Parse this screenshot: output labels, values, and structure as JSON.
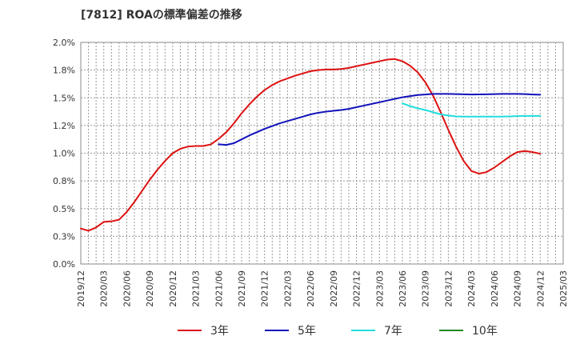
{
  "chart_data": {
    "type": "line",
    "title": "[7812]  ROAの標準偏差の推移",
    "xlabel": "",
    "ylabel": "",
    "ylim": [
      0,
      2.0
    ],
    "y_ticks": [
      "0.0%",
      "0.3%",
      "0.5%",
      "0.8%",
      "1.0%",
      "1.2%",
      "1.5%",
      "1.8%",
      "2.0%"
    ],
    "x_ticks": [
      "2019/12",
      "2020/03",
      "2020/06",
      "2020/09",
      "2020/12",
      "2021/03",
      "2021/06",
      "2021/09",
      "2021/12",
      "2022/03",
      "2022/06",
      "2022/09",
      "2022/12",
      "2023/03",
      "2023/06",
      "2023/09",
      "2023/12",
      "2024/03",
      "2024/06",
      "2024/09",
      "2024/12",
      "2025/03"
    ],
    "grid": true,
    "legend_position": "bottom",
    "series": [
      {
        "name": "3年",
        "color": "#dd1111",
        "points": [
          [
            "2019/12",
            0.32
          ],
          [
            "2020/01",
            0.3
          ],
          [
            "2020/02",
            0.33
          ],
          [
            "2020/03",
            0.38
          ],
          [
            "2020/04",
            0.385
          ],
          [
            "2020/05",
            0.4
          ],
          [
            "2020/06",
            0.47
          ],
          [
            "2020/07",
            0.56
          ],
          [
            "2020/08",
            0.66
          ],
          [
            "2020/09",
            0.76
          ],
          [
            "2020/10",
            0.85
          ],
          [
            "2020/11",
            0.93
          ],
          [
            "2020/12",
            1.0
          ],
          [
            "2021/01",
            1.04
          ],
          [
            "2021/02",
            1.06
          ],
          [
            "2021/03",
            1.065
          ],
          [
            "2021/04",
            1.065
          ],
          [
            "2021/05",
            1.08
          ],
          [
            "2021/06",
            1.13
          ],
          [
            "2021/07",
            1.19
          ],
          [
            "2021/08",
            1.27
          ],
          [
            "2021/09",
            1.36
          ],
          [
            "2021/10",
            1.44
          ],
          [
            "2021/11",
            1.51
          ],
          [
            "2021/12",
            1.57
          ],
          [
            "2022/01",
            1.615
          ],
          [
            "2022/02",
            1.65
          ],
          [
            "2022/03",
            1.675
          ],
          [
            "2022/04",
            1.7
          ],
          [
            "2022/05",
            1.72
          ],
          [
            "2022/06",
            1.74
          ],
          [
            "2022/07",
            1.75
          ],
          [
            "2022/08",
            1.755
          ],
          [
            "2022/09",
            1.755
          ],
          [
            "2022/10",
            1.76
          ],
          [
            "2022/11",
            1.77
          ],
          [
            "2022/12",
            1.785
          ],
          [
            "2023/01",
            1.8
          ],
          [
            "2023/02",
            1.815
          ],
          [
            "2023/03",
            1.83
          ],
          [
            "2023/04",
            1.845
          ],
          [
            "2023/05",
            1.85
          ],
          [
            "2023/06",
            1.83
          ],
          [
            "2023/07",
            1.79
          ],
          [
            "2023/08",
            1.73
          ],
          [
            "2023/09",
            1.64
          ],
          [
            "2023/10",
            1.52
          ],
          [
            "2023/11",
            1.37
          ],
          [
            "2023/12",
            1.21
          ],
          [
            "2024/01",
            1.06
          ],
          [
            "2024/02",
            0.93
          ],
          [
            "2024/03",
            0.84
          ],
          [
            "2024/04",
            0.815
          ],
          [
            "2024/05",
            0.83
          ],
          [
            "2024/06",
            0.87
          ],
          [
            "2024/07",
            0.92
          ],
          [
            "2024/08",
            0.97
          ],
          [
            "2024/09",
            1.01
          ],
          [
            "2024/10",
            1.02
          ],
          [
            "2024/11",
            1.01
          ],
          [
            "2024/12",
            0.995
          ]
        ]
      },
      {
        "name": "5年",
        "color": "#1111bb",
        "points": [
          [
            "2021/06",
            1.08
          ],
          [
            "2021/07",
            1.075
          ],
          [
            "2021/08",
            1.09
          ],
          [
            "2021/09",
            1.125
          ],
          [
            "2021/10",
            1.16
          ],
          [
            "2021/11",
            1.19
          ],
          [
            "2021/12",
            1.22
          ],
          [
            "2022/01",
            1.245
          ],
          [
            "2022/02",
            1.27
          ],
          [
            "2022/03",
            1.29
          ],
          [
            "2022/04",
            1.31
          ],
          [
            "2022/05",
            1.33
          ],
          [
            "2022/06",
            1.35
          ],
          [
            "2022/07",
            1.365
          ],
          [
            "2022/08",
            1.375
          ],
          [
            "2022/09",
            1.383
          ],
          [
            "2022/10",
            1.39
          ],
          [
            "2022/11",
            1.4
          ],
          [
            "2022/12",
            1.415
          ],
          [
            "2023/01",
            1.43
          ],
          [
            "2023/02",
            1.445
          ],
          [
            "2023/03",
            1.46
          ],
          [
            "2023/04",
            1.475
          ],
          [
            "2023/05",
            1.49
          ],
          [
            "2023/06",
            1.505
          ],
          [
            "2023/07",
            1.515
          ],
          [
            "2023/08",
            1.525
          ],
          [
            "2023/09",
            1.53
          ],
          [
            "2023/10",
            1.535
          ],
          [
            "2023/11",
            1.535
          ],
          [
            "2023/12",
            1.535
          ],
          [
            "2024/01",
            1.533
          ],
          [
            "2024/02",
            1.532
          ],
          [
            "2024/03",
            1.53
          ],
          [
            "2024/04",
            1.531
          ],
          [
            "2024/05",
            1.532
          ],
          [
            "2024/06",
            1.533
          ],
          [
            "2024/07",
            1.535
          ],
          [
            "2024/08",
            1.535
          ],
          [
            "2024/09",
            1.535
          ],
          [
            "2024/10",
            1.533
          ],
          [
            "2024/11",
            1.53
          ],
          [
            "2024/12",
            1.528
          ]
        ]
      },
      {
        "name": "7年",
        "color": "#22dddd",
        "points": [
          [
            "2023/06",
            1.45
          ],
          [
            "2023/07",
            1.425
          ],
          [
            "2023/08",
            1.405
          ],
          [
            "2023/09",
            1.39
          ],
          [
            "2023/10",
            1.37
          ],
          [
            "2023/11",
            1.35
          ],
          [
            "2023/12",
            1.34
          ],
          [
            "2024/01",
            1.332
          ],
          [
            "2024/02",
            1.33
          ],
          [
            "2024/03",
            1.33
          ],
          [
            "2024/04",
            1.33
          ],
          [
            "2024/05",
            1.33
          ],
          [
            "2024/06",
            1.33
          ],
          [
            "2024/07",
            1.33
          ],
          [
            "2024/08",
            1.332
          ],
          [
            "2024/09",
            1.335
          ],
          [
            "2024/10",
            1.337
          ],
          [
            "2024/11",
            1.337
          ],
          [
            "2024/12",
            1.337
          ]
        ]
      },
      {
        "name": "10年",
        "color": "#228822",
        "points": []
      }
    ]
  }
}
